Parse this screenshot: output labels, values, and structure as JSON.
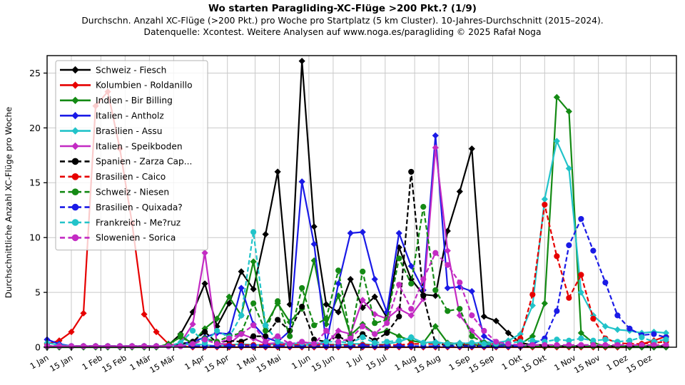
{
  "chart_data": {
    "type": "line",
    "title": "Wo starten Paragliding-XC-Flüge >200 Pkt.? (1/9)",
    "subtitle1": "Durchschn. Anzahl XC-Flüge (>200 Pkt.) pro Woche pro Startplatz (5 km Cluster). 10-Jahres-Durchschnitt (2015–2024).",
    "subtitle2": "Datenquelle: Xcontest. Weitere Analysen auf www.noga.es/paragliding © 2025 Rafał Noga",
    "xlabel": "",
    "ylabel": "Durchschnittliche Anzahl XC-Flüge pro Woche",
    "x_unit": "52 weekly values per series, week 1 = 1 Jan",
    "ylim": [
      0,
      26.6
    ],
    "y_ticks": [
      0,
      5,
      10,
      15,
      20,
      25
    ],
    "grid": true,
    "legend_position": "upper left",
    "x_ticks": [
      {
        "label": "1 Jan",
        "day": 1
      },
      {
        "label": "15 Jan",
        "day": 15
      },
      {
        "label": "1 Feb",
        "day": 32
      },
      {
        "label": "15 Feb",
        "day": 46
      },
      {
        "label": "1 Mär",
        "day": 60
      },
      {
        "label": "15 Mär",
        "day": 74
      },
      {
        "label": "1 Apr",
        "day": 91
      },
      {
        "label": "15 Apr",
        "day": 105
      },
      {
        "label": "1 Mai",
        "day": 121
      },
      {
        "label": "15 Mai",
        "day": 135
      },
      {
        "label": "1 Jun",
        "day": 152
      },
      {
        "label": "15 Jun",
        "day": 166
      },
      {
        "label": "1 Jul",
        "day": 182
      },
      {
        "label": "15 Jul",
        "day": 196
      },
      {
        "label": "1 Aug",
        "day": 213
      },
      {
        "label": "15 Aug",
        "day": 227
      },
      {
        "label": "1 Sep",
        "day": 244
      },
      {
        "label": "15 Sep",
        "day": 258
      },
      {
        "label": "1 Okt",
        "day": 274
      },
      {
        "label": "15 Okt",
        "day": 288
      },
      {
        "label": "1 Nov",
        "day": 305
      },
      {
        "label": "15 Nov",
        "day": 319
      },
      {
        "label": "1 Dez",
        "day": 335
      },
      {
        "label": "15 Dez",
        "day": 349
      }
    ],
    "series": [
      {
        "name": "Schweiz - Fiesch",
        "color": "#000000",
        "style": "solid",
        "marker": "diamond",
        "values": [
          0,
          0,
          0,
          0,
          0,
          0,
          0,
          0,
          0,
          0,
          0.2,
          1.2,
          3.2,
          5.8,
          1.9,
          4.0,
          6.9,
          5.3,
          10.3,
          16.0,
          3.9,
          26.1,
          11.0,
          3.9,
          3.2,
          6.2,
          3.6,
          4.6,
          2.7,
          9.1,
          6.2,
          4.8,
          4.7,
          10.6,
          14.2,
          18.1,
          2.8,
          2.4,
          1.3,
          0.4,
          0.2,
          0.2,
          0.1,
          0.1,
          0.1,
          0.1,
          0,
          0,
          0,
          0,
          0,
          0
        ]
      },
      {
        "name": "Kolumbien - Roldanillo",
        "color": "#e60000",
        "style": "solid",
        "marker": "diamond",
        "values": [
          0.3,
          0.6,
          1.4,
          3.1,
          22.0,
          23.3,
          18.1,
          11.3,
          3.0,
          1.4,
          0.3,
          0.1,
          0,
          0,
          0,
          0,
          0,
          0,
          0,
          0,
          0,
          0,
          0,
          0,
          0,
          0,
          0,
          0,
          0,
          0,
          0,
          0,
          0,
          0,
          0,
          0,
          0,
          0,
          0,
          0,
          0,
          0,
          0,
          0,
          0,
          0,
          0,
          0,
          0,
          0.3,
          0.6,
          1.0
        ]
      },
      {
        "name": "Indien - Bir Billing",
        "color": "#148a14",
        "style": "solid",
        "marker": "diamond",
        "values": [
          0,
          0,
          0,
          0,
          0,
          0,
          0,
          0,
          0,
          0,
          0.3,
          0.9,
          0.4,
          1.7,
          2.6,
          4.6,
          2.9,
          7.8,
          2.0,
          4.0,
          2.3,
          3.5,
          7.9,
          2.1,
          4.7,
          1.1,
          2.1,
          1.2,
          1.5,
          1.0,
          0.6,
          0.4,
          1.9,
          0.4,
          0.3,
          0.2,
          0.2,
          0.1,
          0.1,
          0.3,
          1.0,
          4.0,
          22.8,
          21.5,
          1.3,
          0.4,
          0.1,
          0.1,
          0,
          0,
          0,
          0
        ]
      },
      {
        "name": "Italien - Antholz",
        "color": "#1a1ae6",
        "style": "solid",
        "marker": "diamond",
        "values": [
          0.7,
          0.3,
          0.1,
          0.1,
          0.1,
          0.1,
          0.1,
          0.1,
          0.1,
          0.1,
          0.1,
          0.3,
          0.5,
          0.9,
          1.3,
          1.2,
          5.4,
          2.1,
          0.9,
          0.5,
          1.5,
          15.1,
          9.4,
          0.3,
          5.8,
          10.4,
          10.5,
          6.2,
          3.2,
          10.4,
          7.4,
          5.2,
          19.3,
          5.4,
          5.5,
          5.1,
          1.0,
          0.3,
          0.2,
          0.1,
          0.1,
          0.1,
          0.1,
          0.1,
          0.1,
          0.1,
          0.1,
          0.1,
          0.1,
          0.1,
          0.1,
          0.1
        ]
      },
      {
        "name": "Brasilien - Assu",
        "color": "#22c3c9",
        "style": "solid",
        "marker": "diamond",
        "values": [
          0.4,
          0.2,
          0.1,
          0.1,
          0.1,
          0.1,
          0.1,
          0.1,
          0.1,
          0.1,
          0.1,
          0.2,
          0.3,
          0.2,
          0.1,
          0.2,
          0.3,
          0.2,
          0.2,
          0.3,
          0.2,
          0.2,
          0.2,
          0.3,
          0.2,
          0.3,
          0.3,
          0.2,
          0.3,
          0.5,
          0.9,
          0.4,
          0.5,
          0.3,
          0.4,
          0.3,
          0.5,
          0.4,
          0.6,
          1.2,
          3.8,
          13.5,
          18.8,
          16.3,
          5.0,
          2.9,
          1.9,
          1.6,
          1.5,
          1.3,
          1.4,
          1.3
        ]
      },
      {
        "name": "Italien - Speikboden",
        "color": "#c32bc3",
        "style": "solid",
        "marker": "diamond",
        "values": [
          0.1,
          0.1,
          0.1,
          0.1,
          0.1,
          0.1,
          0.1,
          0.1,
          0.1,
          0.1,
          0.1,
          0.4,
          2.1,
          8.6,
          0.3,
          0.3,
          1.2,
          0.8,
          0.3,
          0.4,
          0.3,
          0.4,
          0.4,
          0.3,
          1.5,
          1.2,
          4.3,
          3.0,
          2.6,
          3.5,
          2.9,
          4.4,
          18.2,
          8.8,
          2.9,
          1.5,
          0.4,
          0.2,
          0.1,
          0.1,
          0.1,
          0.1,
          0.1,
          0.1,
          0.1,
          0.1,
          0.1,
          0.1,
          0.1,
          0.1,
          0.1,
          0.1
        ]
      },
      {
        "name": "Spanien - Zarza Cap...",
        "color": "#000000",
        "style": "dashed",
        "marker": "circle",
        "values": [
          0.1,
          0.1,
          0.1,
          0.1,
          0.1,
          0.1,
          0.1,
          0.1,
          0.1,
          0.1,
          0.1,
          0.3,
          0.5,
          1.4,
          0.4,
          0.6,
          0.5,
          1.0,
          1.0,
          2.5,
          1.5,
          3.7,
          0.7,
          0.5,
          1.0,
          0.4,
          1.2,
          0.6,
          1.3,
          2.8,
          16.0,
          4.7,
          0.3,
          0.2,
          0.2,
          0.1,
          0.1,
          0.1,
          0.1,
          0.1,
          0.1,
          0.1,
          0.1,
          0.1,
          0.1,
          0.1,
          0.1,
          0.1,
          0.1,
          0.1,
          0.1,
          0.1
        ]
      },
      {
        "name": "Brasilien - Caico",
        "color": "#e60000",
        "style": "dashed",
        "marker": "circle",
        "values": [
          0.1,
          0.1,
          0.1,
          0.1,
          0.1,
          0.1,
          0.1,
          0.1,
          0.1,
          0.1,
          0.1,
          0.1,
          0.1,
          0.1,
          0.1,
          0.2,
          0.2,
          0.2,
          0.2,
          0.2,
          0.2,
          0.2,
          0.2,
          0.2,
          0.2,
          0.2,
          0.2,
          0.2,
          0.2,
          0.2,
          0.3,
          0.3,
          0.3,
          0.3,
          0.3,
          0.3,
          0.3,
          0.3,
          0.4,
          0.8,
          4.8,
          13.0,
          8.3,
          4.5,
          6.6,
          2.6,
          0.8,
          0.4,
          0.3,
          0.3,
          0.4,
          0.5
        ]
      },
      {
        "name": "Schweiz - Niesen",
        "color": "#148a14",
        "style": "dashed",
        "marker": "circle",
        "values": [
          0.1,
          0.1,
          0.1,
          0.1,
          0.1,
          0.1,
          0.1,
          0.1,
          0.1,
          0.1,
          0.1,
          1.1,
          0.3,
          0.8,
          0.5,
          1.0,
          1.3,
          4.0,
          1.5,
          4.2,
          1.0,
          5.4,
          2.0,
          2.6,
          7.0,
          0.9,
          6.9,
          2.2,
          2.5,
          8.1,
          5.8,
          12.8,
          5.2,
          3.3,
          3.5,
          1.0,
          0.4,
          0.2,
          0.1,
          0.1,
          0.1,
          0.1,
          0.1,
          0.1,
          0.1,
          0.1,
          0.1,
          0.1,
          0.1,
          0.1,
          0.1,
          0.1
        ]
      },
      {
        "name": "Brasilien - Quixada?",
        "color": "#1a1ae6",
        "style": "dashed",
        "marker": "circle",
        "values": [
          0.1,
          0.1,
          0.1,
          0.1,
          0.1,
          0.1,
          0.1,
          0.1,
          0.1,
          0.1,
          0.1,
          0.1,
          0.1,
          0.1,
          0.1,
          0.1,
          0.1,
          0.1,
          0.1,
          0.1,
          0.1,
          0.1,
          0.1,
          0.1,
          0.1,
          0.1,
          0.1,
          0.1,
          0.1,
          0.1,
          0.1,
          0.1,
          0.1,
          0.1,
          0.1,
          0.1,
          0.1,
          0.1,
          0.1,
          0.1,
          0.3,
          0.8,
          3.3,
          9.3,
          11.7,
          8.8,
          5.9,
          2.9,
          1.7,
          1.1,
          1.2,
          0.9
        ]
      },
      {
        "name": "Frankreich - Me?ruz",
        "color": "#22c3c9",
        "style": "dashed",
        "marker": "circle",
        "values": [
          0.1,
          0.1,
          0.1,
          0.1,
          0.1,
          0.1,
          0.1,
          0.1,
          0.1,
          0.1,
          0.1,
          0.4,
          1.5,
          0.4,
          1.5,
          0.9,
          2.9,
          10.5,
          2.0,
          0.5,
          0.3,
          0.4,
          0.3,
          0.5,
          0.5,
          0.4,
          0.9,
          0.4,
          0.5,
          0.6,
          0.9,
          0.4,
          0.4,
          0.3,
          0.3,
          0.4,
          0.3,
          0.3,
          0.4,
          0.5,
          0.6,
          0.5,
          0.7,
          0.6,
          0.8,
          0.6,
          0.7,
          0.5,
          0.6,
          0.9,
          0.5,
          0.7
        ]
      },
      {
        "name": "Slowenien - Sorica",
        "color": "#c32bc3",
        "style": "dashed",
        "marker": "circle",
        "values": [
          0.1,
          0.1,
          0.1,
          0.1,
          0.1,
          0.1,
          0.1,
          0.1,
          0.1,
          0.1,
          0.1,
          0.1,
          0.3,
          0.7,
          0.3,
          0.8,
          1.2,
          2.0,
          0.5,
          1.0,
          0.3,
          0.5,
          0.3,
          1.5,
          0.5,
          0.8,
          1.9,
          1.2,
          2.2,
          5.7,
          3.5,
          6.2,
          8.6,
          7.5,
          5.9,
          2.9,
          1.5,
          0.5,
          0.3,
          0.2,
          0.2,
          0.2,
          0.2,
          0.2,
          0.2,
          0.2,
          0.2,
          0.2,
          0.2,
          0.2,
          0.2,
          0.2
        ]
      }
    ],
    "colors": {
      "grid": "#c9c9c9",
      "axis": "#000000",
      "legend_border": "#b3b3b3"
    }
  }
}
